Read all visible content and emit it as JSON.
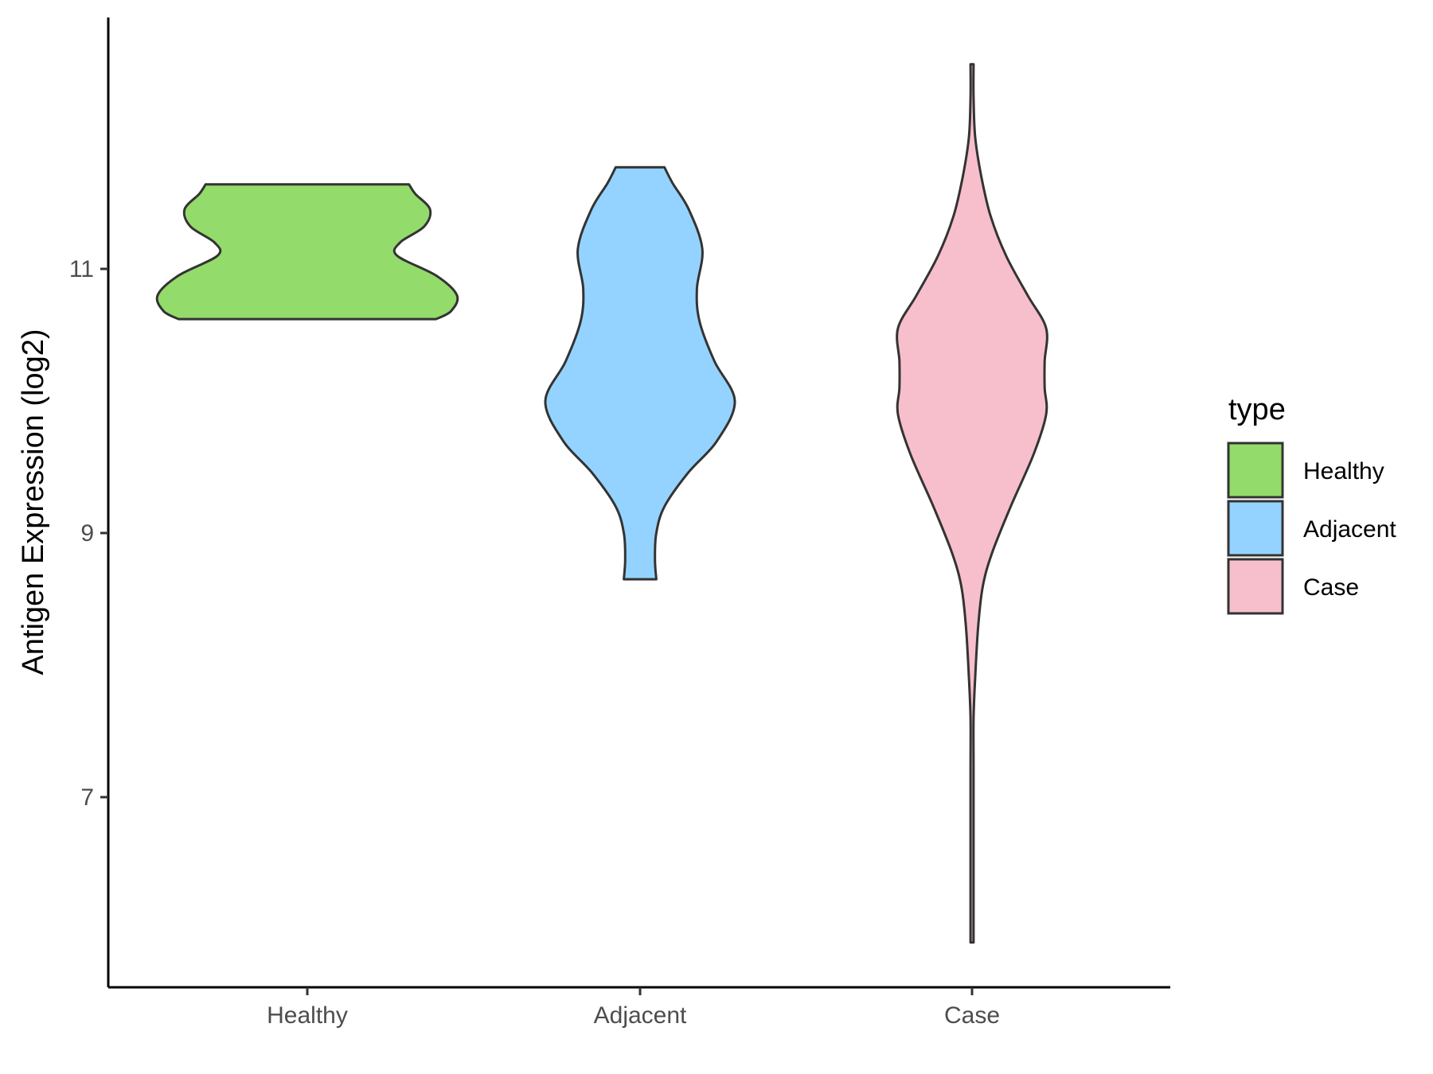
{
  "chart_data": {
    "type": "violin",
    "title": "",
    "xlabel": "",
    "ylabel": "Antigen Expression (log2)",
    "categories": [
      "Healthy",
      "Adjacent",
      "Case"
    ],
    "y_ticks": [
      7,
      9,
      11
    ],
    "ylim": [
      5.8,
      12.9
    ],
    "grid": false,
    "legend": {
      "title": "type",
      "placement": "right",
      "entries": [
        {
          "label": "Healthy",
          "color": "#93DB6A"
        },
        {
          "label": "Adjacent",
          "color": "#94D3FF"
        },
        {
          "label": "Case",
          "color": "#F7BFCB"
        }
      ]
    },
    "series": [
      {
        "category": "Healthy",
        "color": "#93DB6A",
        "min": 10.62,
        "max": 11.64,
        "density_profile": [
          {
            "y": 10.62,
            "width": 0.86
          },
          {
            "y": 10.68,
            "width": 0.96
          },
          {
            "y": 10.8,
            "width": 1.0
          },
          {
            "y": 10.95,
            "width": 0.86
          },
          {
            "y": 11.1,
            "width": 0.6
          },
          {
            "y": 11.2,
            "width": 0.62
          },
          {
            "y": 11.32,
            "width": 0.78
          },
          {
            "y": 11.45,
            "width": 0.82
          },
          {
            "y": 11.57,
            "width": 0.72
          },
          {
            "y": 11.64,
            "width": 0.68
          }
        ]
      },
      {
        "category": "Adjacent",
        "color": "#94D3FF",
        "min": 8.65,
        "max": 11.77,
        "density_profile": [
          {
            "y": 8.65,
            "width": 0.12
          },
          {
            "y": 8.8,
            "width": 0.11
          },
          {
            "y": 9.0,
            "width": 0.12
          },
          {
            "y": 9.2,
            "width": 0.18
          },
          {
            "y": 9.45,
            "width": 0.35
          },
          {
            "y": 9.7,
            "width": 0.57
          },
          {
            "y": 10.0,
            "width": 0.7
          },
          {
            "y": 10.3,
            "width": 0.55
          },
          {
            "y": 10.6,
            "width": 0.44
          },
          {
            "y": 10.85,
            "width": 0.42
          },
          {
            "y": 11.15,
            "width": 0.46
          },
          {
            "y": 11.45,
            "width": 0.36
          },
          {
            "y": 11.65,
            "width": 0.24
          },
          {
            "y": 11.77,
            "width": 0.18
          }
        ]
      },
      {
        "category": "Case",
        "color": "#F7BFCB",
        "min": 5.9,
        "max": 12.55,
        "density_profile": [
          {
            "y": 5.9,
            "width": 0.01
          },
          {
            "y": 6.5,
            "width": 0.01
          },
          {
            "y": 7.2,
            "width": 0.01
          },
          {
            "y": 7.6,
            "width": 0.01
          },
          {
            "y": 7.9,
            "width": 0.02
          },
          {
            "y": 8.3,
            "width": 0.04
          },
          {
            "y": 8.6,
            "width": 0.07
          },
          {
            "y": 8.85,
            "width": 0.13
          },
          {
            "y": 9.2,
            "width": 0.25
          },
          {
            "y": 9.6,
            "width": 0.4
          },
          {
            "y": 9.9,
            "width": 0.48
          },
          {
            "y": 10.1,
            "width": 0.47
          },
          {
            "y": 10.3,
            "width": 0.47
          },
          {
            "y": 10.55,
            "width": 0.48
          },
          {
            "y": 10.8,
            "width": 0.36
          },
          {
            "y": 11.1,
            "width": 0.22
          },
          {
            "y": 11.4,
            "width": 0.12
          },
          {
            "y": 11.7,
            "width": 0.06
          },
          {
            "y": 12.0,
            "width": 0.02
          },
          {
            "y": 12.3,
            "width": 0.01
          },
          {
            "y": 12.55,
            "width": 0.01
          }
        ]
      }
    ]
  }
}
